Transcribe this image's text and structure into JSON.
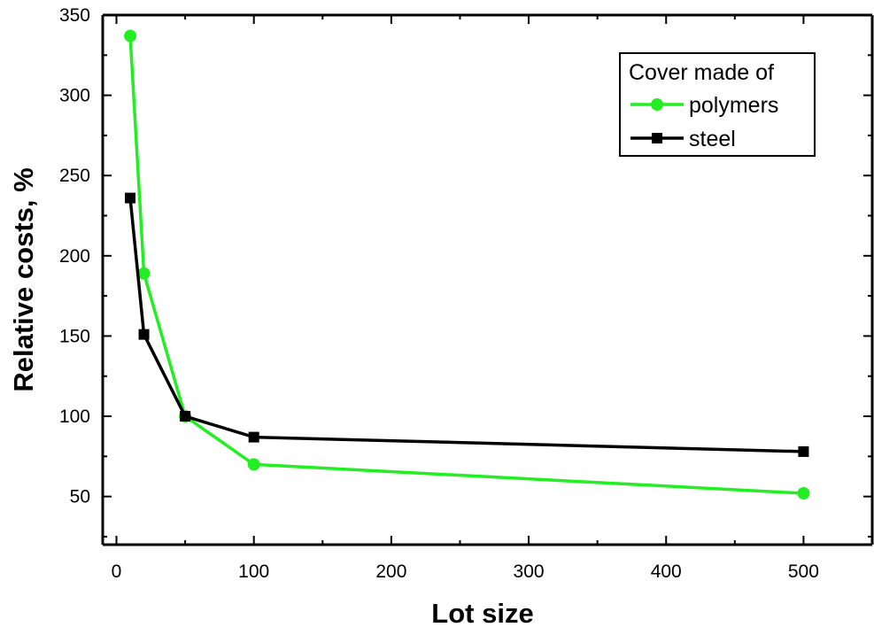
{
  "chart_data": {
    "type": "line",
    "xlabel": "Lot size",
    "ylabel": "Relative costs, %",
    "x_ticks": [
      {
        "value": 0,
        "label": "0"
      },
      {
        "value": 100,
        "label": "100"
      },
      {
        "value": 200,
        "label": "200"
      },
      {
        "value": 300,
        "label": "300"
      },
      {
        "value": 400,
        "label": "400"
      },
      {
        "value": 500,
        "label": "500"
      }
    ],
    "y_ticks": [
      {
        "value": 50,
        "label": "50"
      },
      {
        "value": 100,
        "label": "100"
      },
      {
        "value": 150,
        "label": "150"
      },
      {
        "value": 200,
        "label": "200"
      },
      {
        "value": 250,
        "label": "250"
      },
      {
        "value": 300,
        "label": "300"
      },
      {
        "value": 350,
        "label": "350"
      }
    ],
    "xlim": [
      -10,
      550
    ],
    "ylim": [
      20,
      350
    ],
    "grid": false,
    "legend": {
      "title": "Cover made of",
      "placement": "top-right"
    },
    "series": [
      {
        "name": "polymers",
        "color": "#22ee22",
        "marker": "circle",
        "x": [
          10,
          20,
          50,
          100,
          500
        ],
        "y": [
          337,
          189,
          100,
          70,
          52
        ]
      },
      {
        "name": "steel",
        "color": "#000000",
        "marker": "square",
        "x": [
          10,
          20,
          50,
          100,
          500
        ],
        "y": [
          236,
          151,
          100,
          87,
          78
        ]
      }
    ]
  }
}
